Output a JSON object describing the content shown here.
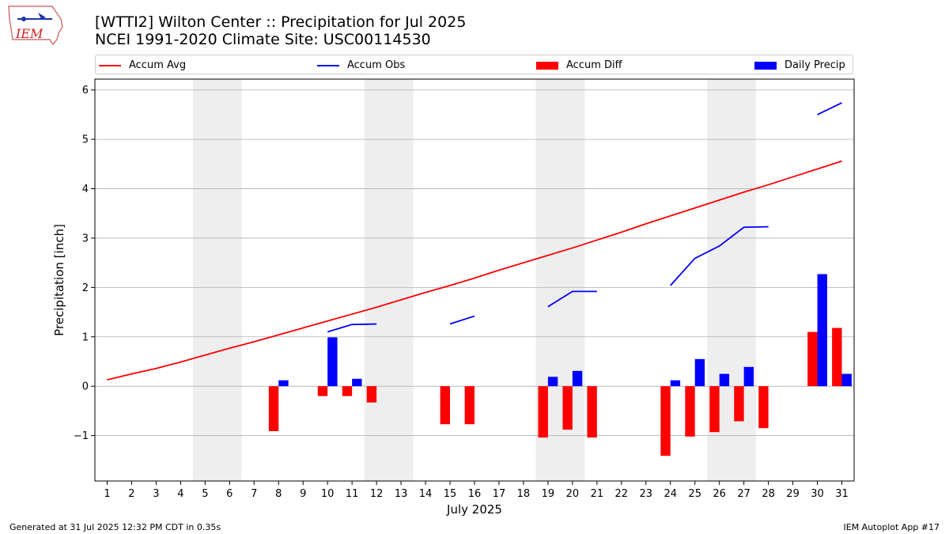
{
  "logo": {
    "text": "IEM"
  },
  "header": {
    "title_line1": "[WTTI2] Wilton Center :: Precipitation for Jul 2025",
    "title_line2": "NCEI 1991-2020 Climate Site: USC00114530"
  },
  "footer": {
    "left": "Generated at 31 Jul 2025 12:32 PM CDT in 0.35s",
    "right": "IEM Autoplot App #17"
  },
  "colors": {
    "avg": "#ff0000",
    "obs": "#0000ff",
    "diff": "#ff0000",
    "daily": "#0000ff",
    "weekend_shade": "#eeeeee",
    "grid": "#b0b0b0"
  },
  "chart_data": {
    "type": "bar",
    "title": "[WTTI2] Wilton Center :: Precipitation for Jul 2025",
    "subtitle": "NCEI 1991-2020 Climate Site: USC00114530",
    "xlabel": "July 2025",
    "ylabel": "Precipitation [inch]",
    "ylim": [
      -1.92,
      6.22
    ],
    "xlim": [
      0.5,
      31.5
    ],
    "yticks": [
      -1,
      0,
      1,
      2,
      3,
      4,
      5,
      6
    ],
    "ytick_labels": [
      "−1",
      "0",
      "1",
      "2",
      "3",
      "4",
      "5",
      "6"
    ],
    "days": [
      1,
      2,
      3,
      4,
      5,
      6,
      7,
      8,
      9,
      10,
      11,
      12,
      13,
      14,
      15,
      16,
      17,
      18,
      19,
      20,
      21,
      22,
      23,
      24,
      25,
      26,
      27,
      28,
      29,
      30,
      31
    ],
    "weekend_shading": [
      [
        4.5,
        6.5
      ],
      [
        11.5,
        13.5
      ],
      [
        18.5,
        20.5
      ],
      [
        25.5,
        27.5
      ]
    ],
    "grid": true,
    "legend_position": "top",
    "legend": [
      "Accum Avg",
      "Accum Obs",
      "Accum Diff",
      "Daily Precip"
    ],
    "series": [
      {
        "name": "Accum Avg",
        "kind": "line",
        "x": [
          1,
          2,
          3,
          4,
          5,
          6,
          7,
          8,
          9,
          10,
          11,
          12,
          13,
          14,
          15,
          16,
          17,
          18,
          19,
          20,
          21,
          22,
          23,
          24,
          25,
          26,
          27,
          28,
          29,
          30,
          31
        ],
        "values": [
          0.13,
          0.25,
          0.36,
          0.49,
          0.63,
          0.77,
          0.9,
          1.04,
          1.18,
          1.32,
          1.46,
          1.6,
          1.75,
          1.9,
          2.04,
          2.19,
          2.35,
          2.5,
          2.65,
          2.8,
          2.96,
          3.12,
          3.29,
          3.45,
          3.61,
          3.77,
          3.93,
          4.08,
          4.24,
          4.4,
          4.56
        ]
      },
      {
        "name": "Accum Obs",
        "kind": "line",
        "segments": [
          {
            "x": [
              10,
              11,
              12
            ],
            "values": [
              1.1,
              1.25,
              1.26
            ]
          },
          {
            "x": [
              15,
              16
            ],
            "values": [
              1.26,
              1.42
            ]
          },
          {
            "x": [
              19,
              20,
              21
            ],
            "values": [
              1.61,
              1.92,
              1.92
            ]
          },
          {
            "x": [
              24,
              25,
              26,
              27,
              28
            ],
            "values": [
              2.04,
              2.59,
              2.84,
              3.22,
              3.23
            ]
          },
          {
            "x": [
              30,
              31
            ],
            "values": [
              5.5,
              5.74
            ]
          }
        ]
      },
      {
        "name": "Accum Diff",
        "kind": "bar",
        "x": [
          8,
          10,
          11,
          12,
          15,
          16,
          19,
          20,
          21,
          24,
          25,
          26,
          27,
          28,
          30,
          31
        ],
        "values": [
          -0.91,
          -0.2,
          -0.2,
          -0.33,
          -0.77,
          -0.77,
          -1.04,
          -0.88,
          -1.04,
          -1.41,
          -1.02,
          -0.93,
          -0.71,
          -0.85,
          1.1,
          1.18
        ]
      },
      {
        "name": "Daily Precip",
        "kind": "bar",
        "x": [
          8,
          10,
          11,
          19,
          20,
          24,
          25,
          26,
          27,
          30,
          31
        ],
        "values": [
          0.12,
          0.99,
          0.15,
          0.19,
          0.31,
          0.12,
          0.55,
          0.25,
          0.39,
          2.27,
          0.25
        ]
      }
    ]
  }
}
